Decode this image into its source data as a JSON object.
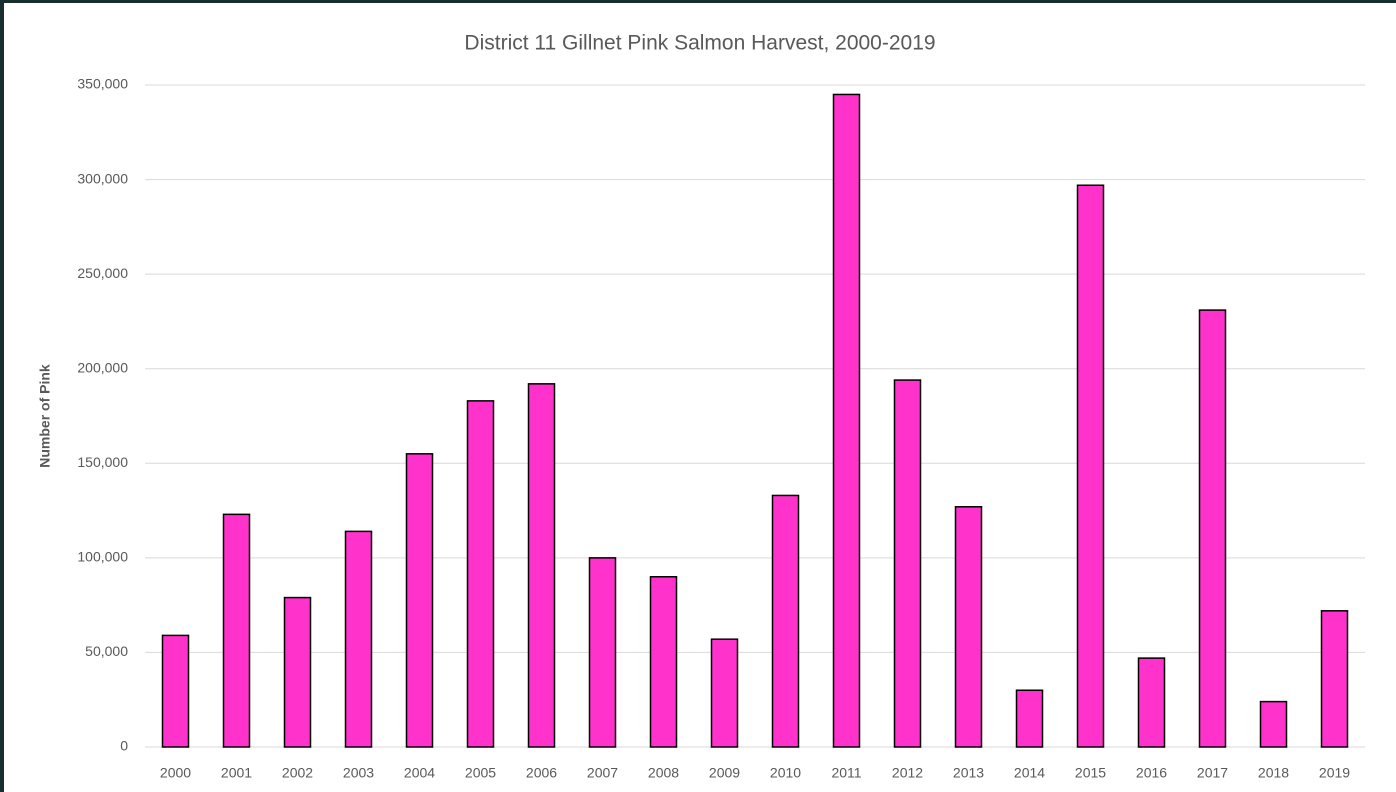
{
  "chart_data": {
    "type": "bar",
    "title": "District 11 Gillnet Pink Salmon Harvest, 2000-2019",
    "y_label": "Number of Pink",
    "categories": [
      "2000",
      "2001",
      "2002",
      "2003",
      "2004",
      "2005",
      "2006",
      "2007",
      "2008",
      "2009",
      "2010",
      "2011",
      "2012",
      "2013",
      "2014",
      "2015",
      "2016",
      "2017",
      "2018",
      "2019"
    ],
    "values": [
      59000,
      123000,
      79000,
      114000,
      155000,
      183000,
      192000,
      100000,
      90000,
      57000,
      133000,
      345000,
      194000,
      127000,
      30000,
      297000,
      47000,
      231000,
      24000,
      72000
    ],
    "color": "#ff33cc",
    "ylim": [
      0,
      350000
    ],
    "yticks": [
      0,
      {
        "value": 50000,
        "label": "50,000"
      },
      {
        "value": 100000,
        "label": "100,000"
      },
      {
        "value": 150000,
        "label": "150,000"
      },
      {
        "value": 200000,
        "label": "200,000"
      },
      {
        "value": 250000,
        "label": "250,000"
      },
      {
        "value": 300000,
        "label": "300,000"
      },
      {
        "value": 350000,
        "label": "350,000"
      }
    ],
    "grid": true
  }
}
